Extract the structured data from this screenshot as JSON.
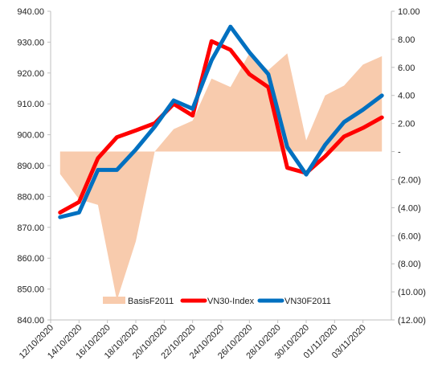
{
  "chart_data": {
    "type": "line",
    "x": [
      "12/10/2020",
      "13/10/2020",
      "14/10/2020",
      "15/10/2020",
      "16/10/2020",
      "19/10/2020",
      "20/10/2020",
      "21/10/2020",
      "22/10/2020",
      "23/10/2020",
      "26/10/2020",
      "27/10/2020",
      "28/10/2020",
      "29/10/2020",
      "30/10/2020",
      "02/11/2020",
      "03/11/2020",
      "04/11/2020"
    ],
    "x_tick_labels": [
      "12/10/2020",
      "14/10/2020",
      "16/10/2020",
      "18/10/2020",
      "20/10/2020",
      "22/10/2020",
      "24/10/2020",
      "26/10/2020",
      "28/10/2020",
      "30/10/2020",
      "01/11/2020",
      "03/11/2020"
    ],
    "y_left": {
      "range": [
        840,
        940
      ],
      "ticks": [
        "840.00",
        "850.00",
        "860.00",
        "870.00",
        "880.00",
        "890.00",
        "900.00",
        "910.00",
        "920.00",
        "930.00",
        "940.00"
      ]
    },
    "y_right": {
      "range": [
        -12,
        10
      ],
      "ticks": [
        "(12.00)",
        "(10.00)",
        "(8.00)",
        "(6.00)",
        "(4.00)",
        "(2.00)",
        "-",
        "2.00",
        "4.00",
        "6.00",
        "8.00",
        "10.00"
      ]
    },
    "grid": false,
    "legend_position": "bottom-center",
    "series": [
      {
        "name": "BasisF2011",
        "type": "area",
        "axis": "right",
        "color": "#f8cbad",
        "values": [
          -1.6,
          -3.4,
          -3.8,
          -10.6,
          -6.4,
          0.0,
          1.6,
          2.2,
          5.2,
          4.6,
          7.0,
          5.8,
          7.0,
          0.8,
          4.0,
          4.7,
          6.2,
          6.8
        ]
      },
      {
        "name": "VN30-Index",
        "type": "line",
        "axis": "left",
        "color": "#ff0000",
        "values": [
          874.8,
          878.2,
          892.4,
          899.2,
          901.4,
          903.7,
          910.0,
          906.2,
          930.3,
          927.5,
          919.6,
          915.4,
          889.3,
          887.6,
          893.0,
          899.4,
          902.2,
          905.6
        ]
      },
      {
        "name": "VN30F2011",
        "type": "line",
        "axis": "left",
        "color": "#0070c0",
        "values": [
          873.3,
          874.8,
          888.6,
          888.6,
          895.2,
          902.6,
          911.1,
          908.4,
          924.1,
          935.0,
          926.7,
          919.6,
          896.0,
          887.1,
          896.7,
          904.1,
          908.1,
          912.7
        ]
      }
    ]
  }
}
